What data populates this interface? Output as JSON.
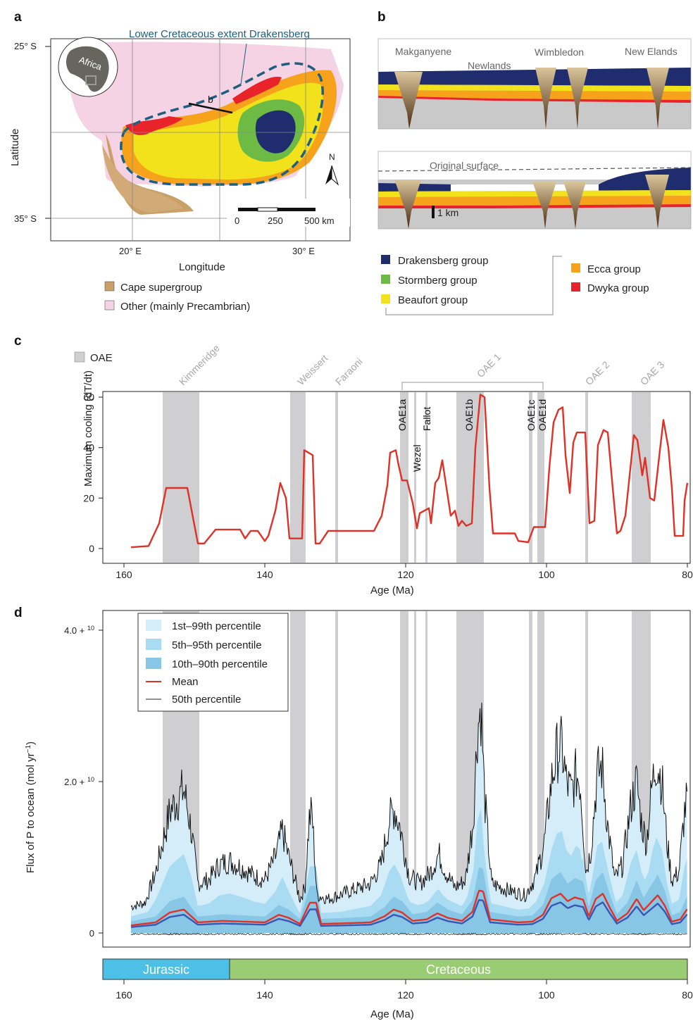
{
  "panels": {
    "a": "a",
    "b": "b",
    "c": "c",
    "d": "d"
  },
  "map": {
    "title": "Lower Cretaceous extent Drakensberg",
    "lat_ticks": [
      "25° S",
      "35° S"
    ],
    "lon_ticks": [
      "20° E",
      "30° E"
    ],
    "xlabel": "Longitude",
    "ylabel": "Latitude",
    "inset_label": "Africa",
    "section_label": "b",
    "north": "N",
    "scale_labels": [
      "0",
      "250",
      "500 km"
    ],
    "legend": [
      {
        "label": "Cape supergroup",
        "color": "#c8a068"
      },
      {
        "label": "Other (mainly Precambrian)",
        "color": "#f5d3e4"
      }
    ]
  },
  "sections": {
    "top_labels": [
      "Makganyene",
      "Newlands",
      "Wimbledon",
      "New Elands"
    ],
    "bottom_label": "Original surface",
    "scale": "1 km",
    "legend_left": [
      {
        "label": "Drakensberg group",
        "color": "#1f2c6e"
      },
      {
        "label": "Stormberg group",
        "color": "#6dbb45"
      },
      {
        "label": "Beaufort group",
        "color": "#f2e21c"
      }
    ],
    "legend_right": [
      {
        "label": "Ecca group",
        "color": "#f6a21b"
      },
      {
        "label": "Dwyka group",
        "color": "#e8242a"
      }
    ]
  },
  "events": {
    "legend": "OAE",
    "names": [
      {
        "label": "Kimmeridge",
        "x": 152
      },
      {
        "label": "Weissert",
        "x": 135.2
      },
      {
        "label": "Faraoni",
        "x": 129.8
      },
      {
        "label": "OAE 2",
        "x": 94.3
      },
      {
        "label": "OAE 3",
        "x": 86.5
      }
    ],
    "oae1": {
      "label": "OAE 1",
      "from": 120.5,
      "to": 100.5
    },
    "sub_labels": [
      {
        "label": "OAE1a",
        "x": 120.5,
        "row": 0
      },
      {
        "label": "Wezel",
        "x": 118.4,
        "row": 1
      },
      {
        "label": "Fallot",
        "x": 117.0,
        "row": 0
      },
      {
        "label": "OAE1b",
        "x": 111.0,
        "row": 0
      },
      {
        "label": "OAE1c",
        "x": 102.2,
        "row": 0
      },
      {
        "label": "OAE1d",
        "x": 100.6,
        "row": 0
      }
    ],
    "bands": [
      [
        154.5,
        149.3
      ],
      [
        136.4,
        134.2
      ],
      [
        130.0,
        129.6
      ],
      [
        120.8,
        119.6
      ],
      [
        118.8,
        118.5
      ],
      [
        117.2,
        116.9
      ],
      [
        112.8,
        108.9
      ],
      [
        102.5,
        102.0
      ],
      [
        101.3,
        100.3
      ],
      [
        94.5,
        94.1
      ],
      [
        87.9,
        85.2
      ]
    ]
  },
  "chart_data": [
    {
      "type": "line",
      "xlabel": "Age (Ma)",
      "ylabel": "Maximum cooling (dT/dt)",
      "xlim": [
        163,
        80
      ],
      "ylim": [
        0,
        62
      ],
      "x_ticks": [
        160,
        140,
        120,
        100,
        80
      ],
      "y_ticks": [
        0,
        20,
        40,
        60
      ],
      "color": "#e03127",
      "points": [
        [
          159,
          0.5
        ],
        [
          156.5,
          1
        ],
        [
          155,
          10
        ],
        [
          154,
          24
        ],
        [
          151,
          24
        ],
        [
          149.5,
          2
        ],
        [
          148.6,
          2
        ],
        [
          147,
          7.5
        ],
        [
          143.5,
          7.5
        ],
        [
          142.8,
          4
        ],
        [
          142,
          7
        ],
        [
          141,
          7
        ],
        [
          140,
          3
        ],
        [
          139.5,
          5
        ],
        [
          138.5,
          15
        ],
        [
          137.8,
          26
        ],
        [
          137,
          20
        ],
        [
          136.5,
          4
        ],
        [
          134.7,
          4
        ],
        [
          134.4,
          39
        ],
        [
          133.2,
          37
        ],
        [
          132.8,
          2
        ],
        [
          132.2,
          2
        ],
        [
          131,
          7
        ],
        [
          124.5,
          7
        ],
        [
          123.4,
          13
        ],
        [
          122.6,
          25
        ],
        [
          122.2,
          38
        ],
        [
          121.4,
          39
        ],
        [
          121,
          33
        ],
        [
          120.5,
          27
        ],
        [
          119.8,
          27
        ],
        [
          119,
          18
        ],
        [
          118.4,
          8
        ],
        [
          118,
          14
        ],
        [
          116.7,
          16
        ],
        [
          116.4,
          10
        ],
        [
          115.8,
          26
        ],
        [
          115.3,
          28
        ],
        [
          114.8,
          35
        ],
        [
          114.2,
          24
        ],
        [
          113.6,
          13
        ],
        [
          113,
          15
        ],
        [
          112.5,
          9
        ],
        [
          112,
          11
        ],
        [
          111.4,
          9
        ],
        [
          110.6,
          10
        ],
        [
          110.1,
          40
        ],
        [
          109.4,
          61
        ],
        [
          108.8,
          60
        ],
        [
          108.1,
          24
        ],
        [
          107.6,
          6
        ],
        [
          104.5,
          6
        ],
        [
          104,
          3
        ],
        [
          102.6,
          2.5
        ],
        [
          101.8,
          8.5
        ],
        [
          100.2,
          8.5
        ],
        [
          99.6,
          32
        ],
        [
          99,
          50
        ],
        [
          98.3,
          55
        ],
        [
          97.7,
          56
        ],
        [
          97.3,
          37
        ],
        [
          96.7,
          22
        ],
        [
          96.2,
          42
        ],
        [
          95.7,
          46
        ],
        [
          94.5,
          46
        ],
        [
          93.9,
          10
        ],
        [
          93.2,
          11
        ],
        [
          92.7,
          41
        ],
        [
          91.9,
          47
        ],
        [
          91.3,
          46
        ],
        [
          90.6,
          24
        ],
        [
          90,
          6
        ],
        [
          89.5,
          7
        ],
        [
          88.8,
          13
        ],
        [
          87.6,
          45
        ],
        [
          87.1,
          43
        ],
        [
          86.4,
          29
        ],
        [
          86,
          36
        ],
        [
          85.3,
          20
        ],
        [
          84.7,
          19
        ],
        [
          83.9,
          39
        ],
        [
          83.4,
          51
        ],
        [
          82.7,
          40
        ],
        [
          82.2,
          24
        ],
        [
          81.8,
          5
        ],
        [
          80.6,
          5
        ],
        [
          80.4,
          19
        ],
        [
          80,
          26
        ]
      ]
    },
    {
      "type": "area",
      "xlabel": "Age (Ma)",
      "ylabel": "Flux of P to ocean (mol yr",
      "ylabel_sup": "−1",
      "ylabel_end": ")",
      "xlim": [
        163,
        80
      ],
      "ylim": [
        -0.4,
        4.0
      ],
      "y_unit": "1e10",
      "x_ticks": [
        160,
        140,
        120,
        100,
        80
      ],
      "y_ticks": [
        {
          "v": 4.0,
          "base": "4.0 + 10",
          "exp": "10"
        },
        {
          "v": 2.0,
          "base": "2.0 + 10",
          "exp": "10"
        },
        {
          "v": 0,
          "base": "0",
          "exp": ""
        }
      ],
      "legend": [
        {
          "label": "1st–99th percentile",
          "color": "#d4edf8",
          "kind": "box"
        },
        {
          "label": "5th–95th percentile",
          "color": "#a9dcf2",
          "kind": "box"
        },
        {
          "label": "10th–90th percentile",
          "color": "#88c6e6",
          "kind": "box"
        },
        {
          "label": "Mean",
          "color": "#e03127",
          "kind": "line"
        },
        {
          "label": "50th percentile",
          "color": "#222222",
          "kind": "line"
        }
      ],
      "p99_envelope": [
        [
          159,
          0.35
        ],
        [
          157,
          0.4
        ],
        [
          155.5,
          0.8
        ],
        [
          154.5,
          1.2
        ],
        [
          153.5,
          1.6
        ],
        [
          152.5,
          1.75
        ],
        [
          151.5,
          1.9
        ],
        [
          150.5,
          1.4
        ],
        [
          149.5,
          0.65
        ],
        [
          148,
          0.7
        ],
        [
          146.5,
          0.9
        ],
        [
          145,
          0.95
        ],
        [
          143,
          0.85
        ],
        [
          141.5,
          0.75
        ],
        [
          140,
          0.7
        ],
        [
          138.5,
          1.0
        ],
        [
          137.5,
          1.35
        ],
        [
          136.6,
          1.0
        ],
        [
          135,
          0.45
        ],
        [
          134.3,
          0.6
        ],
        [
          133.7,
          1.5
        ],
        [
          133.3,
          1.6
        ],
        [
          132.6,
          0.5
        ],
        [
          131,
          0.45
        ],
        [
          128,
          0.55
        ],
        [
          125,
          0.65
        ],
        [
          123.5,
          0.9
        ],
        [
          122.3,
          1.5
        ],
        [
          121.6,
          1.65
        ],
        [
          120.8,
          1.4
        ],
        [
          119.5,
          0.75
        ],
        [
          118,
          0.65
        ],
        [
          116.5,
          0.8
        ],
        [
          115.3,
          1.05
        ],
        [
          114.3,
          0.8
        ],
        [
          113,
          0.6
        ],
        [
          111.5,
          0.7
        ],
        [
          110.4,
          1.5
        ],
        [
          109.8,
          2.7
        ],
        [
          109.3,
          3.0
        ],
        [
          108.8,
          1.8
        ],
        [
          107.8,
          0.65
        ],
        [
          105,
          0.55
        ],
        [
          103,
          0.5
        ],
        [
          101.5,
          0.75
        ],
        [
          100.3,
          1.2
        ],
        [
          99.3,
          2.0
        ],
        [
          98.5,
          2.4
        ],
        [
          97.8,
          2.45
        ],
        [
          97.2,
          2.0
        ],
        [
          96.5,
          1.85
        ],
        [
          95.8,
          2.1
        ],
        [
          95.2,
          2.0
        ],
        [
          94.4,
          0.8
        ],
        [
          93.7,
          1.1
        ],
        [
          92.8,
          2.1
        ],
        [
          92.1,
          2.2
        ],
        [
          91.3,
          1.4
        ],
        [
          90.3,
          0.7
        ],
        [
          89.2,
          0.9
        ],
        [
          88,
          1.7
        ],
        [
          87.2,
          2.0
        ],
        [
          86.5,
          1.45
        ],
        [
          85.8,
          1.2
        ],
        [
          85,
          1.95
        ],
        [
          84.4,
          2.3
        ],
        [
          83.6,
          2.0
        ],
        [
          82.9,
          1.2
        ],
        [
          82.2,
          0.7
        ],
        [
          81.2,
          0.8
        ],
        [
          80.4,
          1.6
        ],
        [
          80,
          1.8
        ]
      ],
      "mean_envelope": [
        [
          159,
          0.1
        ],
        [
          155.5,
          0.14
        ],
        [
          153.5,
          0.27
        ],
        [
          151.5,
          0.31
        ],
        [
          149.5,
          0.14
        ],
        [
          146,
          0.16
        ],
        [
          143,
          0.15
        ],
        [
          140,
          0.14
        ],
        [
          138,
          0.24
        ],
        [
          136.6,
          0.2
        ],
        [
          135,
          0.12
        ],
        [
          133.6,
          0.4
        ],
        [
          132.7,
          0.4
        ],
        [
          132,
          0.12
        ],
        [
          128,
          0.13
        ],
        [
          125,
          0.14
        ],
        [
          123,
          0.22
        ],
        [
          121.7,
          0.31
        ],
        [
          120.5,
          0.27
        ],
        [
          119,
          0.16
        ],
        [
          117,
          0.18
        ],
        [
          115.5,
          0.26
        ],
        [
          114,
          0.2
        ],
        [
          112,
          0.16
        ],
        [
          110.5,
          0.28
        ],
        [
          109.6,
          0.56
        ],
        [
          109,
          0.55
        ],
        [
          108,
          0.18
        ],
        [
          104,
          0.14
        ],
        [
          102,
          0.15
        ],
        [
          100.5,
          0.24
        ],
        [
          99.3,
          0.46
        ],
        [
          98,
          0.52
        ],
        [
          97,
          0.42
        ],
        [
          96,
          0.47
        ],
        [
          94.8,
          0.44
        ],
        [
          94,
          0.22
        ],
        [
          93,
          0.45
        ],
        [
          92,
          0.52
        ],
        [
          91,
          0.33
        ],
        [
          90,
          0.16
        ],
        [
          88.5,
          0.26
        ],
        [
          87.2,
          0.45
        ],
        [
          86.2,
          0.3
        ],
        [
          85,
          0.42
        ],
        [
          84.2,
          0.5
        ],
        [
          83.2,
          0.36
        ],
        [
          82.2,
          0.15
        ],
        [
          81,
          0.18
        ],
        [
          80,
          0.32
        ]
      ]
    }
  ],
  "eras": {
    "bar": [
      {
        "label": "Jurassic",
        "from": 163,
        "to": 145,
        "color": "#4dc0e8"
      },
      {
        "label": "Cretaceous",
        "from": 145,
        "to": 80,
        "color": "#99cc73"
      }
    ]
  }
}
